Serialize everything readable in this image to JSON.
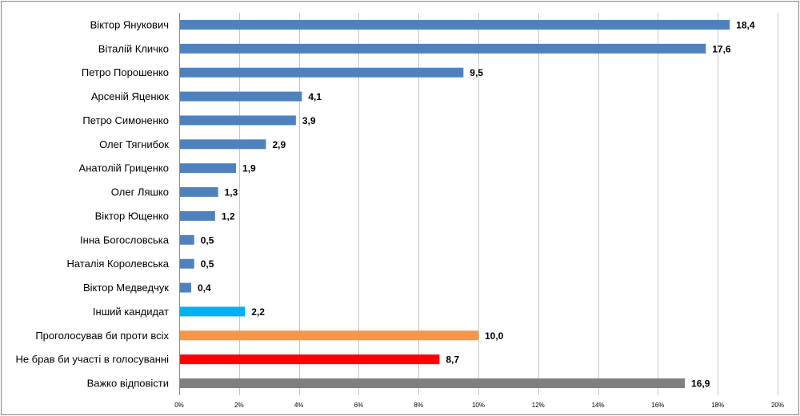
{
  "chart_data": {
    "type": "bar",
    "orientation": "horizontal",
    "categories": [
      "Віктор Янукович",
      "Віталій Кличко",
      "Петро Порошенко",
      "Арсеній Яценюк",
      "Петро Симоненко",
      "Олег Тягнибок",
      "Анатолій Гриценко",
      "Олег Ляшко",
      "Віктор Ющенко",
      "Інна Богословська",
      "Наталія Королевська",
      "Віктор Медведчук",
      "Інший кандидат",
      "Проголосував би проти всіх",
      "Не брав би участі в голосуванні",
      "Важко відповісти"
    ],
    "values": [
      18.4,
      17.6,
      9.5,
      4.1,
      3.9,
      2.9,
      1.9,
      1.3,
      1.2,
      0.5,
      0.5,
      0.4,
      2.2,
      10.0,
      8.7,
      16.9
    ],
    "value_labels": [
      "18,4",
      "17,6",
      "9,5",
      "4,1",
      "3,9",
      "2,9",
      "1,9",
      "1,3",
      "1,2",
      "0,5",
      "0,5",
      "0,4",
      "2,2",
      "10,0",
      "8,7",
      "16,9"
    ],
    "bar_colors": [
      "#4f81bd",
      "#4f81bd",
      "#4f81bd",
      "#4f81bd",
      "#4f81bd",
      "#4f81bd",
      "#4f81bd",
      "#4f81bd",
      "#4f81bd",
      "#4f81bd",
      "#4f81bd",
      "#4f81bd",
      "#00b0f0",
      "#f79646",
      "#ff0000",
      "#7f7f7f"
    ],
    "xlim": [
      0,
      20
    ],
    "x_ticks": [
      "0%",
      "2%",
      "4%",
      "6%",
      "8%",
      "10%",
      "12%",
      "14%",
      "16%",
      "18%",
      "20%"
    ],
    "grid": true,
    "title": "",
    "xlabel": "",
    "ylabel": ""
  }
}
